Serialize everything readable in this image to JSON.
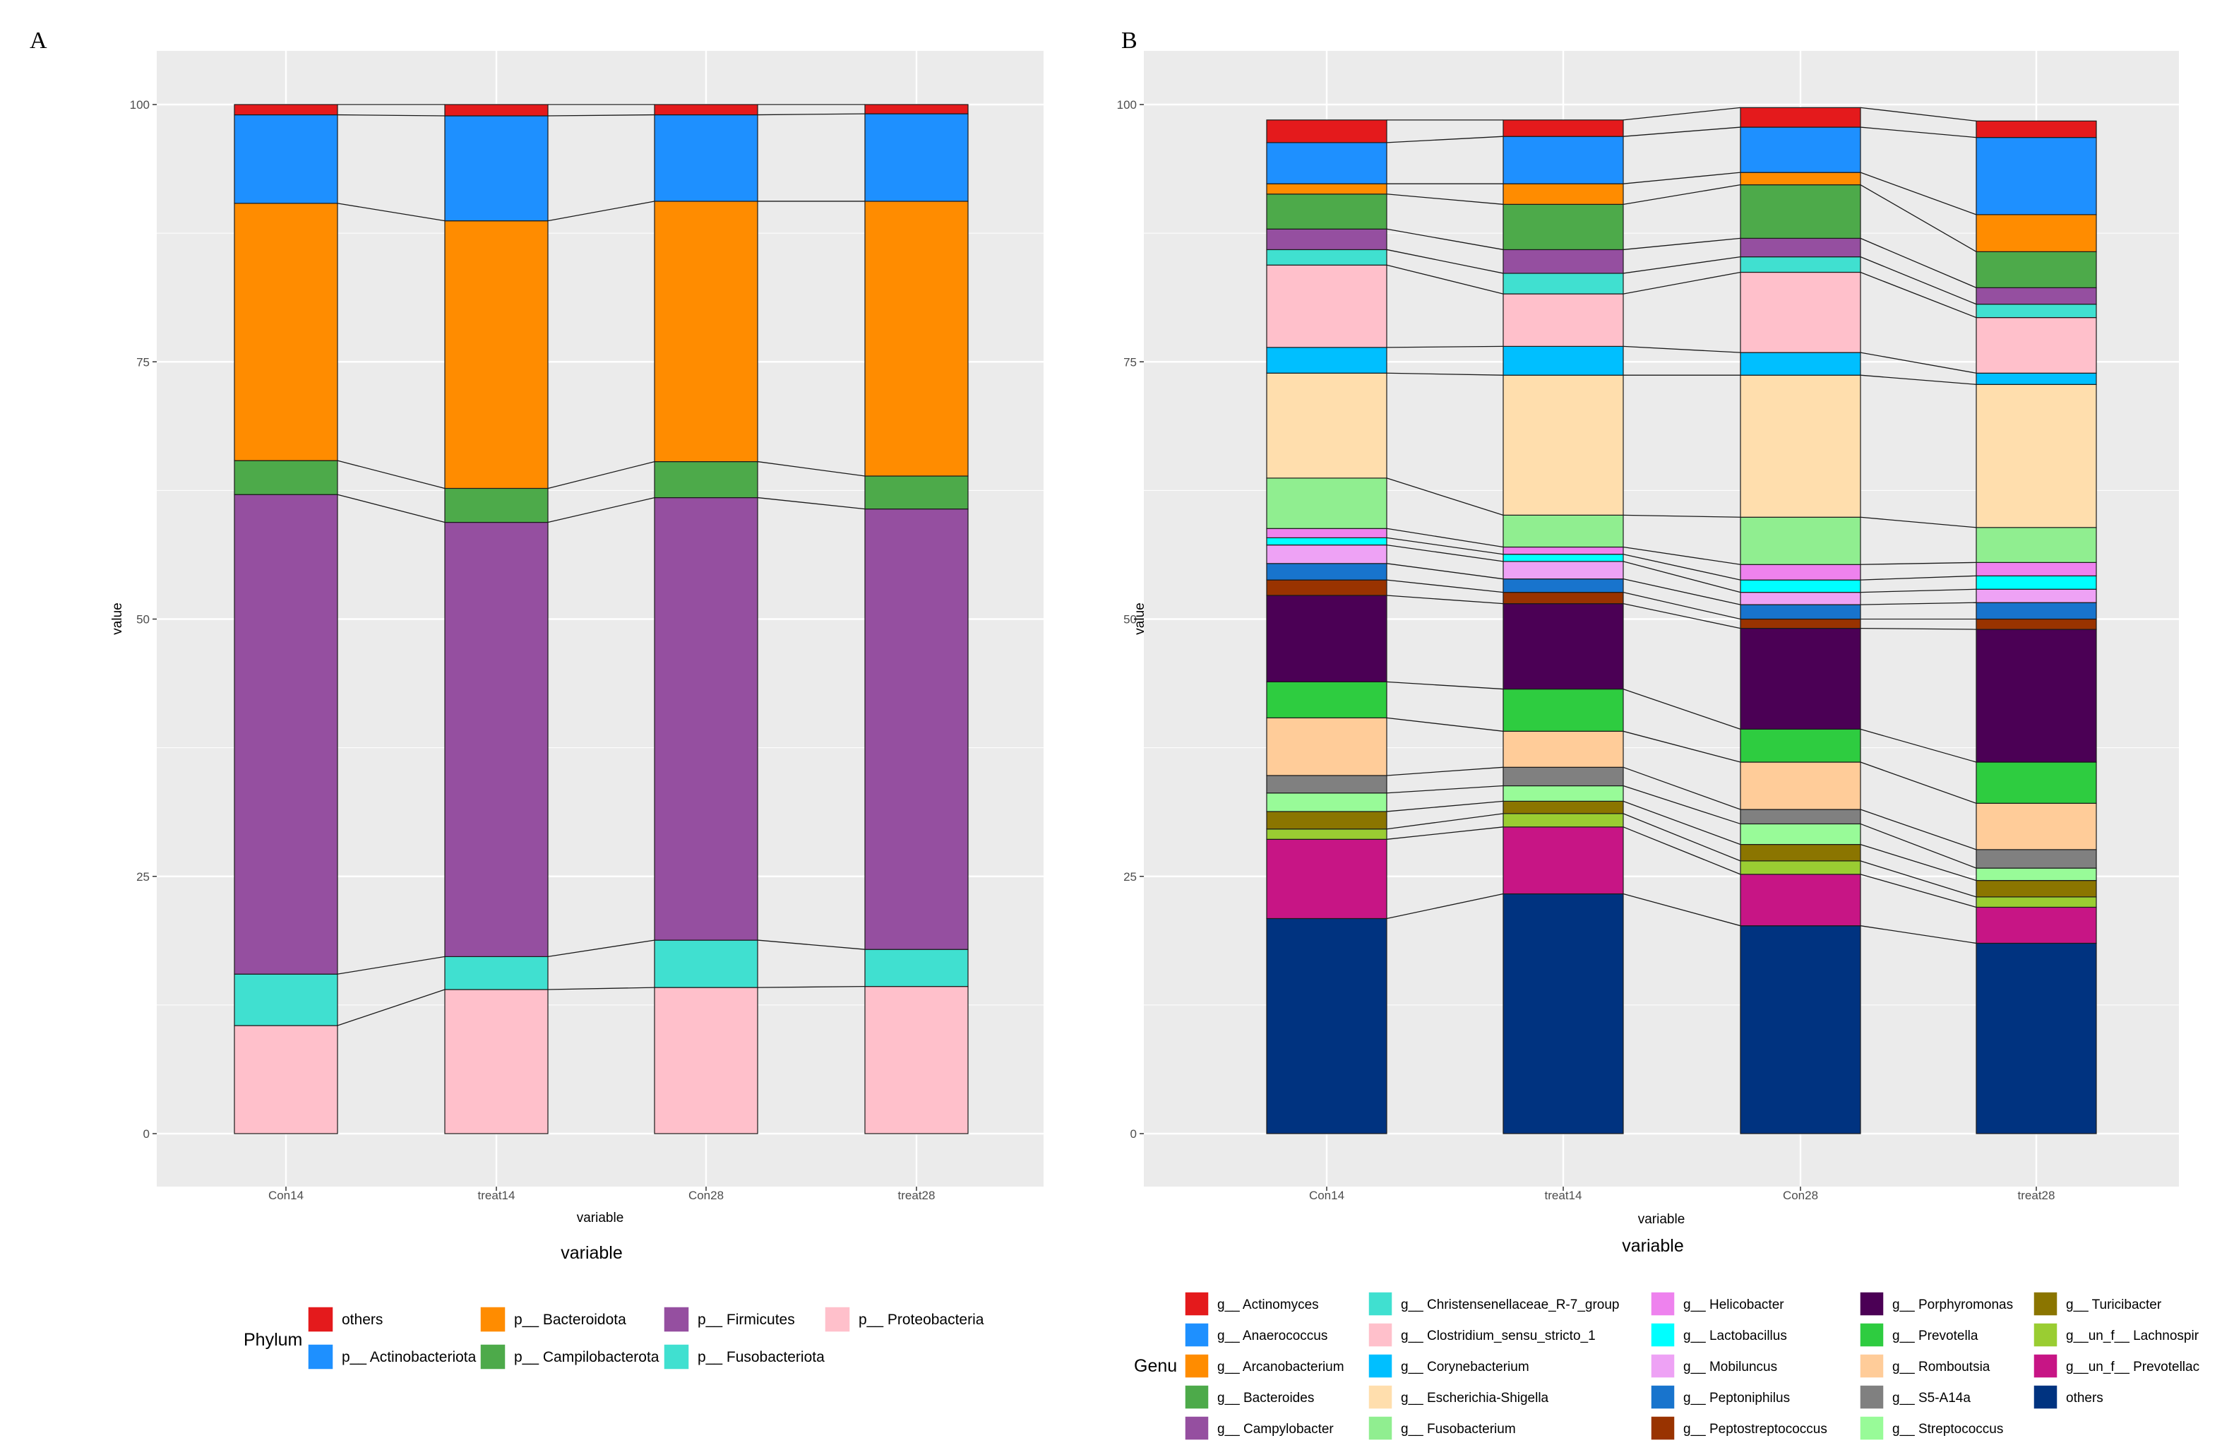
{
  "chart_data": [
    {
      "panel": "A",
      "type": "bar",
      "stacked": true,
      "xlabel": "variable",
      "xlabel_secondary": "variable",
      "ylabel": "value",
      "ylim": [
        0,
        100
      ],
      "yticks": [
        0,
        25,
        50,
        75,
        100
      ],
      "categories": [
        "Con14",
        "treat14",
        "Con28",
        "treat28"
      ],
      "legend_title": "Phylum",
      "legend_position": "bottom",
      "series": [
        {
          "name": "p__ Proteobacteria",
          "color": "#FFC0CB",
          "values": [
            10.5,
            14.0,
            14.2,
            14.3
          ]
        },
        {
          "name": "p__ Fusobacteriota",
          "color": "#40E0D0",
          "values": [
            5.0,
            3.2,
            4.6,
            3.6
          ]
        },
        {
          "name": "p__ Firmicutes",
          "color": "#954FA0",
          "values": [
            46.6,
            42.2,
            43.0,
            42.8
          ]
        },
        {
          "name": "p__ Campilobacterota",
          "color": "#4DAA4A",
          "values": [
            3.3,
            3.3,
            3.5,
            3.2
          ]
        },
        {
          "name": "p__ Bacteroidota",
          "color": "#FF8C00",
          "values": [
            25.0,
            26.0,
            25.3,
            26.7
          ]
        },
        {
          "name": "p__ Actinobacteriota",
          "color": "#1E90FF",
          "values": [
            8.6,
            10.2,
            8.4,
            8.5
          ]
        },
        {
          "name": "others",
          "color": "#E41A1C",
          "values": [
            1.0,
            1.1,
            1.0,
            0.9
          ]
        }
      ],
      "legend_order": [
        "others",
        "p__ Actinobacteriota",
        "p__ Bacteroidota",
        "p__ Campilobacterota",
        "p__ Firmicutes",
        "p__ Fusobacteriota",
        "p__ Proteobacteria"
      ]
    },
    {
      "panel": "B",
      "type": "bar",
      "stacked": true,
      "xlabel": "variable",
      "xlabel_secondary": "variable",
      "ylabel": "value",
      "ylim": [
        0,
        100
      ],
      "yticks": [
        0,
        25,
        50,
        75,
        100
      ],
      "categories": [
        "Con14",
        "treat14",
        "Con28",
        "treat28"
      ],
      "legend_title": "Genu",
      "legend_position": "bottom",
      "series": [
        {
          "name": "others",
          "color": "#003380",
          "values": [
            20.9,
            23.3,
            20.2,
            18.5
          ]
        },
        {
          "name": "g__un_f__ Prevotellac",
          "color": "#C71585",
          "values": [
            7.7,
            6.5,
            5.0,
            3.5
          ]
        },
        {
          "name": "g__un_f__ Lachnospir",
          "color": "#9ACD32",
          "values": [
            1.0,
            1.3,
            1.3,
            1.0
          ]
        },
        {
          "name": "g__ Turicibacter",
          "color": "#8B7500",
          "values": [
            1.7,
            1.2,
            1.6,
            1.6
          ]
        },
        {
          "name": "g__ Streptococcus",
          "color": "#98FB98",
          "values": [
            1.8,
            1.5,
            2.0,
            1.2
          ]
        },
        {
          "name": "g__ S5-A14a",
          "color": "#808080",
          "values": [
            1.7,
            1.8,
            1.4,
            1.8
          ]
        },
        {
          "name": "g__ Romboutsia",
          "color": "#FFCC99",
          "values": [
            5.6,
            3.5,
            4.6,
            4.5
          ]
        },
        {
          "name": "g__ Prevotella",
          "color": "#2ECC40",
          "values": [
            3.5,
            4.1,
            3.2,
            4.0
          ]
        },
        {
          "name": "g__ Porphyromonas",
          "color": "#4B0055",
          "values": [
            8.4,
            8.3,
            9.8,
            12.9
          ]
        },
        {
          "name": "g__ Peptostreptococcus",
          "color": "#993300",
          "values": [
            1.5,
            1.1,
            0.9,
            1.0
          ]
        },
        {
          "name": "g__ Peptoniphilus",
          "color": "#1874CD",
          "values": [
            1.6,
            1.3,
            1.4,
            1.6
          ]
        },
        {
          "name": "g__ Mobiluncus",
          "color": "#EEA2F5",
          "values": [
            1.8,
            1.7,
            1.2,
            1.3
          ]
        },
        {
          "name": "g__ Lactobacillus",
          "color": "#00FFFF",
          "values": [
            0.7,
            0.7,
            1.2,
            1.3
          ]
        },
        {
          "name": "g__ Helicobacter",
          "color": "#EE82EE",
          "values": [
            0.9,
            0.7,
            1.5,
            1.3
          ]
        },
        {
          "name": "g__ Fusobacterium",
          "color": "#90EE90",
          "values": [
            4.9,
            3.1,
            4.6,
            3.4
          ]
        },
        {
          "name": "g__ Escherichia-Shigella",
          "color": "#FFDEAD",
          "values": [
            10.2,
            13.6,
            13.8,
            13.9
          ]
        },
        {
          "name": "g__ Corynebacterium",
          "color": "#00BFFF",
          "values": [
            2.5,
            2.8,
            2.2,
            1.1
          ]
        },
        {
          "name": "g__ Clostridium_sensu_stricto_1",
          "color": "#FFC0CB",
          "values": [
            8.0,
            5.1,
            7.8,
            5.4
          ]
        },
        {
          "name": "g__ Christensenellaceae_R-7_group",
          "color": "#40E0D0",
          "values": [
            1.5,
            2.0,
            1.5,
            1.3
          ]
        },
        {
          "name": "g__ Campylobacter",
          "color": "#954FA0",
          "values": [
            2.0,
            2.3,
            1.8,
            1.6
          ]
        },
        {
          "name": "g__ Bacteroides",
          "color": "#4DAA4A",
          "values": [
            3.4,
            4.4,
            5.2,
            3.5
          ]
        },
        {
          "name": "g__ Arcanobacterium",
          "color": "#FF8C00",
          "values": [
            1.0,
            2.0,
            1.2,
            3.6
          ]
        },
        {
          "name": "g__ Anaerococcus",
          "color": "#1E90FF",
          "values": [
            4.0,
            4.6,
            4.4,
            7.5
          ]
        },
        {
          "name": "g__ Actinomyces",
          "color": "#E41A1C",
          "values": [
            2.2,
            1.6,
            1.9,
            1.6
          ]
        }
      ],
      "legend_order": [
        "g__ Actinomyces",
        "g__ Anaerococcus",
        "g__ Arcanobacterium",
        "g__ Bacteroides",
        "g__ Campylobacter",
        "g__ Christensenellaceae_R-7_group",
        "g__ Clostridium_sensu_stricto_1",
        "g__ Corynebacterium",
        "g__ Escherichia-Shigella",
        "g__ Fusobacterium",
        "g__ Helicobacter",
        "g__ Lactobacillus",
        "g__ Mobiluncus",
        "g__ Peptoniphilus",
        "g__ Peptostreptococcus",
        "g__ Porphyromonas",
        "g__ Prevotella",
        "g__ Romboutsia",
        "g__ S5-A14a",
        "g__ Streptococcus",
        "g__ Turicibacter",
        "g__un_f__ Lachnospir",
        "g__un_f__ Prevotellac",
        "others"
      ]
    }
  ]
}
